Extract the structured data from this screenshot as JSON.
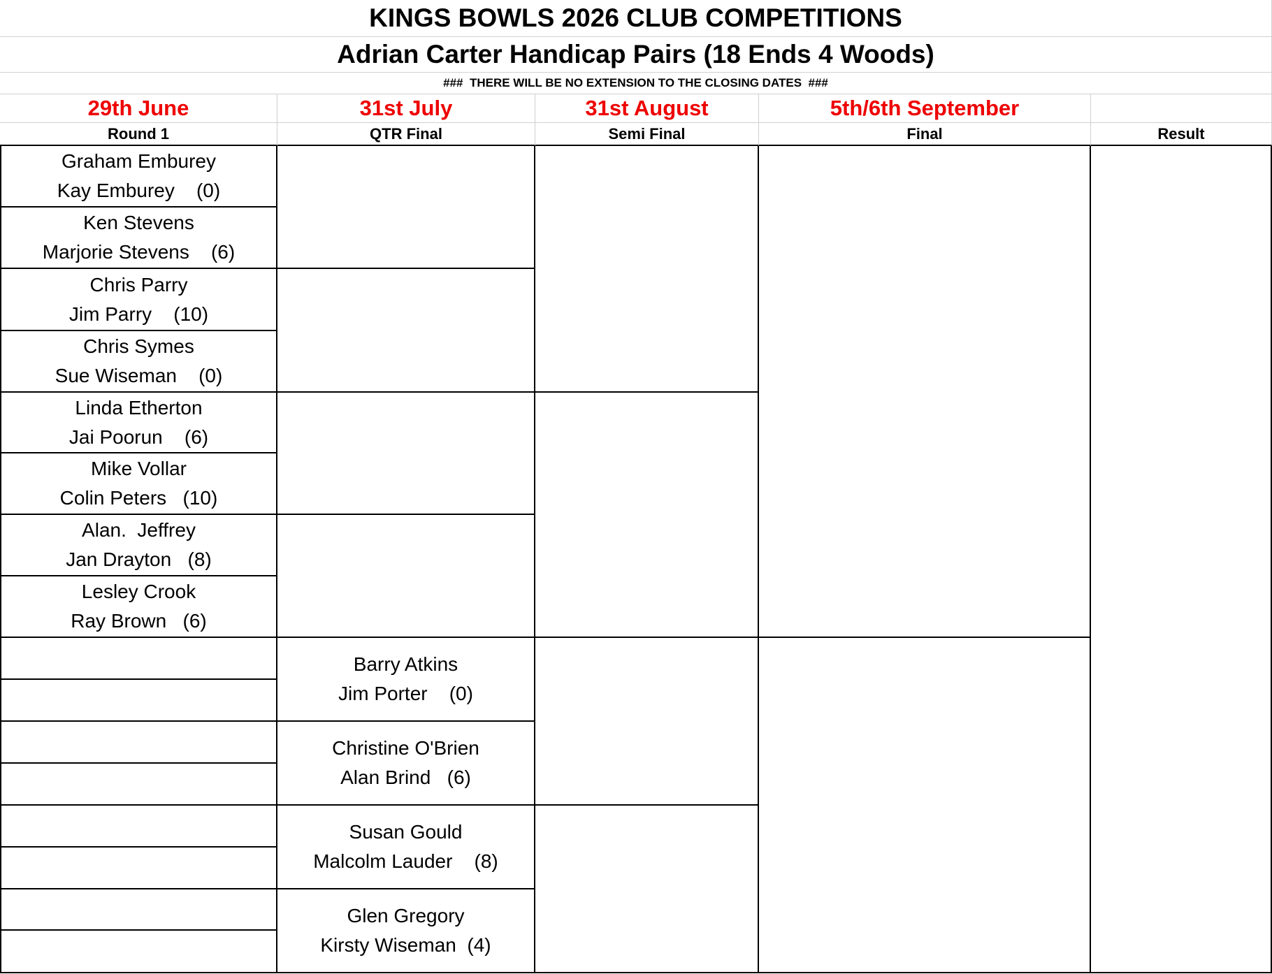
{
  "header": {
    "title": "KINGS BOWLS 2026 CLUB COMPETITIONS",
    "subtitle": "Adrian Carter Handicap Pairs (18 Ends 4 Woods)",
    "note": "###  THERE WILL BE NO EXTENSION TO THE CLOSING DATES  ###"
  },
  "rounds": [
    {
      "date": "29th June",
      "label": "Round 1"
    },
    {
      "date": "31st July",
      "label": "QTR Final"
    },
    {
      "date": "31st August",
      "label": "Semi Final"
    },
    {
      "date": "5th/6th September",
      "label": "Final"
    },
    {
      "label": "Result"
    }
  ],
  "round1": [
    {
      "player1": "Graham Emburey",
      "player2": "Kay Emburey    (0)"
    },
    {
      "player1": "Ken Stevens",
      "player2": "Marjorie Stevens    (6)"
    },
    {
      "player1": "Chris Parry",
      "player2": "Jim Parry    (10)"
    },
    {
      "player1": "Chris Symes",
      "player2": "Sue Wiseman    (0)"
    },
    {
      "player1": "Linda Etherton",
      "player2": "Jai Poorun    (6)"
    },
    {
      "player1": "Mike Vollar",
      "player2": "Colin Peters   (10)"
    },
    {
      "player1": "Alan.  Jeffrey",
      "player2": "Jan Drayton   (8)"
    },
    {
      "player1": "Lesley Crook",
      "player2": "Ray Brown   (6)"
    }
  ],
  "quarter_final_byes": [
    {
      "player1": "Barry Atkins",
      "player2": "Jim Porter    (0)"
    },
    {
      "player1": "Christine O'Brien",
      "player2": "Alan Brind   (6)"
    },
    {
      "player1": "Susan Gould",
      "player2": "Malcolm Lauder    (8)"
    },
    {
      "player1": "Glen Gregory",
      "player2": "Kirsty Wiseman  (4)"
    }
  ]
}
